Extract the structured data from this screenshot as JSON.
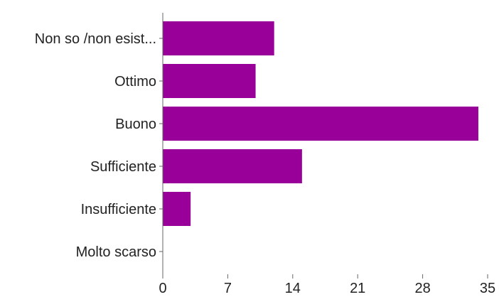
{
  "chart_data": {
    "type": "bar",
    "orientation": "horizontal",
    "categories": [
      "Non so /non esist...",
      "Ottimo",
      "Buono",
      "Sufficiente",
      "Insufficiente",
      "Molto scarso"
    ],
    "values": [
      12,
      10,
      34,
      15,
      3,
      0
    ],
    "xlim": [
      0,
      35
    ],
    "xticks": [
      "0",
      "7",
      "14",
      "21",
      "28",
      "35"
    ],
    "bar_color": "#990099",
    "axis_color": "#666666",
    "grid": false
  }
}
